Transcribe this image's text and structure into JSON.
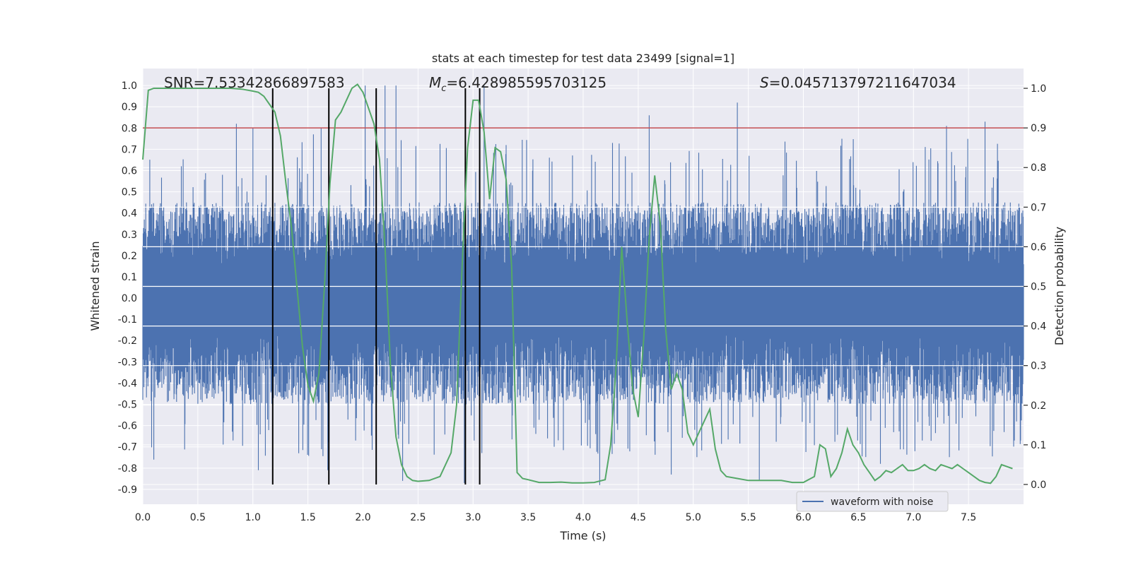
{
  "chart_data": {
    "type": "line",
    "title": "stats at each timestep for test data 23499 [signal=1]",
    "xlabel": "Time (s)",
    "ylabel_left": "Whitened strain",
    "ylabel_right": "Detection probability",
    "xlim": [
      0.0,
      8.0
    ],
    "ylim_left": [
      -0.97,
      1.08
    ],
    "ylim_right": [
      -0.05,
      1.05
    ],
    "x_ticks": [
      0.0,
      0.5,
      1.0,
      1.5,
      2.0,
      2.5,
      3.0,
      3.5,
      4.0,
      4.5,
      5.0,
      5.5,
      6.0,
      6.5,
      7.0,
      7.5
    ],
    "x_tick_labels": [
      "0.0",
      "0.5",
      "1.0",
      "1.5",
      "2.0",
      "2.5",
      "3.0",
      "3.5",
      "4.0",
      "4.5",
      "5.0",
      "5.5",
      "6.0",
      "6.5",
      "7.0",
      "7.5"
    ],
    "y_left_ticks": [
      1.0,
      0.9,
      0.8,
      0.7,
      0.6,
      0.5,
      0.4,
      0.3,
      0.2,
      0.1,
      0.0,
      -0.1,
      -0.2,
      -0.3,
      -0.4,
      -0.5,
      -0.6,
      -0.7,
      -0.8,
      -0.9
    ],
    "y_left_tick_labels": [
      "1.0",
      "0.9",
      "0.8",
      "0.7",
      "0.6",
      "0.5",
      "0.4",
      "0.3",
      "0.2",
      "0.1",
      "0.0",
      "-0.1",
      "-0.2",
      "-0.3",
      "-0.4",
      "-0.5",
      "-0.6",
      "-0.7",
      "-0.8",
      "-0.9"
    ],
    "y_right_ticks": [
      1.0,
      0.9,
      0.8,
      0.7,
      0.6,
      0.5,
      0.4,
      0.3,
      0.2,
      0.1,
      0.0
    ],
    "y_right_tick_labels": [
      "1.0",
      "0.9",
      "0.8",
      "0.7",
      "0.6",
      "0.5",
      "0.4",
      "0.3",
      "0.2",
      "0.1",
      "0.0"
    ],
    "annotations": {
      "snr": "SNR=7.53342866897583",
      "mc": "=6.428985595703125",
      "mc_symbol": "M",
      "mc_sub": "c",
      "s": "=0.045713797211647034",
      "s_symbol": "S"
    },
    "legend": {
      "label": "waveform with noise",
      "location": "lower-right"
    },
    "colors": {
      "waveform": "#4c72b0",
      "probability": "#55a868",
      "threshold": "#c44e52",
      "markers": "#000000",
      "axes_bg": "#eaeaf2",
      "grid": "#ffffff"
    },
    "threshold_probability": 0.9,
    "marker_times": [
      1.18,
      1.69,
      2.12,
      2.93,
      3.06
    ],
    "series": [
      {
        "name": "waveform with noise",
        "axis": "left",
        "envelope_top_typical": 0.45,
        "envelope_bottom_typical": -0.5,
        "peak_spikes": [
          {
            "x": 0.35,
            "y": 0.62
          },
          {
            "x": 0.85,
            "y": 0.82
          },
          {
            "x": 1.0,
            "y": 0.8
          },
          {
            "x": 1.55,
            "y": 0.77
          },
          {
            "x": 1.62,
            "y": 0.8
          },
          {
            "x": 2.02,
            "y": 1.0
          },
          {
            "x": 2.2,
            "y": 1.0
          },
          {
            "x": 2.3,
            "y": 1.0
          },
          {
            "x": 3.1,
            "y": 1.0
          },
          {
            "x": 4.6,
            "y": 0.86
          },
          {
            "x": 5.4,
            "y": 0.92
          },
          {
            "x": 7.65,
            "y": 0.83
          },
          {
            "x": 7.3,
            "y": 0.81
          }
        ],
        "trough_spikes": [
          {
            "x": 0.1,
            "y": -0.76
          },
          {
            "x": 1.05,
            "y": -0.81
          },
          {
            "x": 1.68,
            "y": -0.81
          },
          {
            "x": 2.12,
            "y": -0.75
          },
          {
            "x": 2.36,
            "y": -0.86
          },
          {
            "x": 2.92,
            "y": -0.87
          },
          {
            "x": 4.15,
            "y": -0.88
          },
          {
            "x": 4.8,
            "y": -0.83
          },
          {
            "x": 5.6,
            "y": -0.86
          },
          {
            "x": 6.7,
            "y": -0.78
          }
        ]
      },
      {
        "name": "detection probability",
        "axis": "right",
        "x": [
          0.0,
          0.05,
          0.1,
          0.2,
          0.3,
          0.4,
          0.5,
          0.6,
          0.7,
          0.8,
          0.9,
          1.0,
          1.05,
          1.1,
          1.15,
          1.2,
          1.25,
          1.3,
          1.35,
          1.4,
          1.45,
          1.5,
          1.55,
          1.6,
          1.65,
          1.7,
          1.75,
          1.8,
          1.85,
          1.9,
          1.95,
          2.0,
          2.05,
          2.1,
          2.15,
          2.2,
          2.25,
          2.3,
          2.35,
          2.4,
          2.45,
          2.5,
          2.6,
          2.7,
          2.8,
          2.85,
          2.9,
          2.95,
          3.0,
          3.05,
          3.1,
          3.15,
          3.2,
          3.25,
          3.3,
          3.35,
          3.4,
          3.45,
          3.5,
          3.6,
          3.7,
          3.8,
          3.9,
          4.0,
          4.1,
          4.2,
          4.25,
          4.3,
          4.35,
          4.4,
          4.45,
          4.5,
          4.55,
          4.6,
          4.65,
          4.7,
          4.75,
          4.8,
          4.85,
          4.9,
          4.95,
          5.0,
          5.05,
          5.1,
          5.15,
          5.2,
          5.25,
          5.3,
          5.4,
          5.5,
          5.6,
          5.7,
          5.8,
          5.9,
          6.0,
          6.1,
          6.15,
          6.2,
          6.25,
          6.3,
          6.35,
          6.4,
          6.45,
          6.5,
          6.55,
          6.6,
          6.65,
          6.7,
          6.75,
          6.8,
          6.85,
          6.9,
          6.95,
          7.0,
          7.05,
          7.1,
          7.15,
          7.2,
          7.25,
          7.3,
          7.35,
          7.4,
          7.45,
          7.5,
          7.55,
          7.6,
          7.65,
          7.7,
          7.75,
          7.8,
          7.85,
          7.9
        ],
        "values": [
          0.82,
          0.995,
          1.0,
          1.0,
          1.0,
          1.0,
          1.0,
          1.0,
          1.0,
          1.0,
          0.998,
          0.993,
          0.99,
          0.98,
          0.96,
          0.94,
          0.88,
          0.76,
          0.65,
          0.5,
          0.35,
          0.25,
          0.21,
          0.28,
          0.5,
          0.76,
          0.92,
          0.94,
          0.97,
          1.0,
          1.01,
          0.99,
          0.95,
          0.91,
          0.82,
          0.6,
          0.3,
          0.12,
          0.05,
          0.02,
          0.01,
          0.008,
          0.01,
          0.02,
          0.08,
          0.2,
          0.55,
          0.85,
          0.97,
          0.97,
          0.89,
          0.72,
          0.85,
          0.84,
          0.77,
          0.55,
          0.03,
          0.015,
          0.012,
          0.005,
          0.005,
          0.006,
          0.004,
          0.004,
          0.005,
          0.012,
          0.1,
          0.3,
          0.6,
          0.41,
          0.24,
          0.17,
          0.37,
          0.62,
          0.78,
          0.66,
          0.39,
          0.24,
          0.28,
          0.24,
          0.13,
          0.1,
          0.13,
          0.16,
          0.19,
          0.09,
          0.035,
          0.02,
          0.015,
          0.01,
          0.01,
          0.01,
          0.01,
          0.005,
          0.005,
          0.02,
          0.1,
          0.09,
          0.02,
          0.04,
          0.08,
          0.14,
          0.1,
          0.08,
          0.05,
          0.03,
          0.01,
          0.02,
          0.035,
          0.03,
          0.04,
          0.05,
          0.035,
          0.035,
          0.04,
          0.05,
          0.04,
          0.035,
          0.05,
          0.045,
          0.04,
          0.05,
          0.04,
          0.03,
          0.02,
          0.01,
          0.005,
          0.003,
          0.02,
          0.05,
          0.045,
          0.04
        ]
      }
    ]
  }
}
